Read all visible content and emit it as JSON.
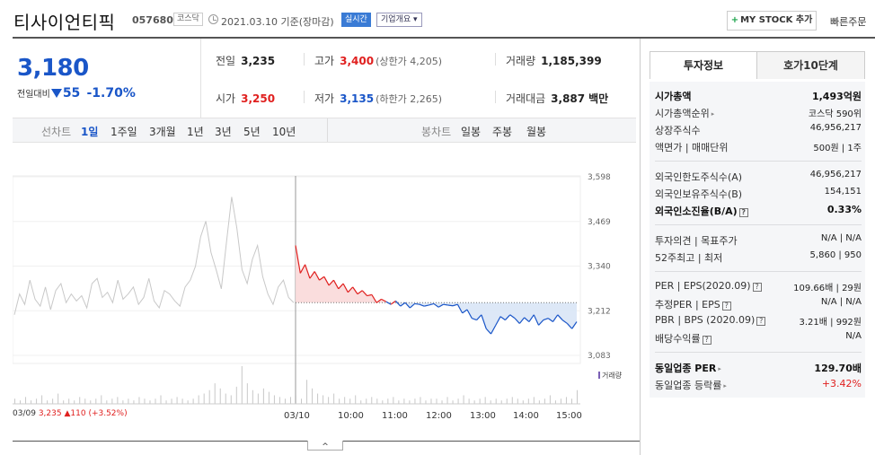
{
  "header": {
    "stock_name": "티사이언티픽",
    "stock_code": "057680",
    "market": "코스닥",
    "date": "2021.03.10 기준(장마감)",
    "realtime": "실시간",
    "company_info": "기업개요 ▾",
    "mystock": "MY STOCK 추가",
    "quick_order": "빠른주문"
  },
  "price": {
    "current": "3,180",
    "change_label": "전일대비",
    "change": "55",
    "change_pct": "-1.70%"
  },
  "summary": {
    "prev_close_label": "전일",
    "prev_close": "3,235",
    "high_label": "고가",
    "high": "3,400",
    "upper_limit": "(상한가 4,205)",
    "volume_label": "거래량",
    "volume": "1,185,399",
    "open_label": "시가",
    "open": "3,250",
    "low_label": "저가",
    "low": "3,135",
    "lower_limit": "(하한가 2,265)",
    "amount_label": "거래대금",
    "amount": "3,887",
    "amount_unit": "백만"
  },
  "chart_tabs": {
    "line_label": "선차트",
    "periods": [
      "1일",
      "1주일",
      "3개월",
      "1년",
      "3년",
      "5년",
      "10년"
    ],
    "candle_label": "봉차트",
    "candles": [
      "일봉",
      "주봉",
      "월봉"
    ]
  },
  "chart_data": {
    "type": "line",
    "y_ticks": [
      "3,598",
      "3,469",
      "3,340",
      "3,212",
      "3,083"
    ],
    "ylim": [
      3083,
      3598
    ],
    "x_ticks": [
      "03/09",
      "03/10",
      "10:00",
      "11:00",
      "12:00",
      "13:00",
      "14:00",
      "15:00"
    ],
    "prev_close": 3235,
    "prev_close_text": {
      "date": "03/09",
      "price": "3,235",
      "arrow": "▲",
      "change": "110",
      "pct": "(+3.52%)"
    },
    "volume_label": "거래량",
    "series": [
      {
        "values": [
          3200,
          3260,
          3230,
          3300,
          3245,
          3225,
          3280,
          3215,
          3270,
          3290,
          3235,
          3260,
          3240,
          3255,
          3220,
          3290,
          3305,
          3250,
          3265,
          3235,
          3300,
          3245,
          3260,
          3280,
          3230,
          3250,
          3305,
          3240,
          3220,
          3270,
          3260,
          3240,
          3225,
          3280,
          3300,
          3340,
          3425,
          3470,
          3380,
          3330,
          3275,
          3410,
          3540,
          3450,
          3330,
          3290,
          3360,
          3400,
          3310,
          3260,
          3230,
          3280,
          3300,
          3250,
          3235
        ]
      },
      {
        "values": [
          3400,
          3320,
          3345,
          3305,
          3325,
          3300,
          3310,
          3285,
          3300,
          3275,
          3290,
          3265,
          3280,
          3260,
          3270,
          3255,
          3258,
          3235,
          3245,
          3238,
          3230,
          3240,
          3225,
          3235,
          3220,
          3232,
          3230,
          3225,
          3228,
          3232,
          3222,
          3230,
          3228,
          3226,
          3230,
          3205,
          3215,
          3190,
          3185,
          3200,
          3160,
          3145,
          3170,
          3195,
          3185,
          3200,
          3190,
          3175,
          3192,
          3180,
          3200,
          3170,
          3185,
          3190,
          3180,
          3200,
          3185,
          3175,
          3160,
          3180
        ]
      }
    ],
    "volume": [
      3,
      2,
      4,
      2,
      3,
      5,
      2,
      3,
      6,
      2,
      3,
      2,
      4,
      3,
      2,
      3,
      5,
      2,
      3,
      4,
      2,
      3,
      2,
      4,
      3,
      2,
      3,
      5,
      2,
      3,
      4,
      3,
      2,
      3,
      5,
      6,
      8,
      12,
      9,
      6,
      5,
      10,
      22,
      12,
      8,
      6,
      9,
      7,
      5,
      4,
      3,
      4,
      5,
      3,
      14,
      9,
      6,
      5,
      4,
      6,
      3,
      4,
      3,
      5,
      2,
      3,
      4,
      3,
      2,
      3,
      4,
      2,
      3,
      2,
      3,
      4,
      2,
      3,
      3,
      2,
      4,
      2,
      3,
      5,
      3,
      2,
      3,
      4,
      2,
      3,
      2,
      3,
      4,
      3,
      2,
      3,
      4,
      2,
      3,
      5,
      2,
      3,
      4,
      3,
      8
    ]
  },
  "right_panel": {
    "tabs": [
      "투자정보",
      "호가10단계"
    ],
    "rows": [
      {
        "l": "시가총액",
        "v": "1,493억원"
      },
      {
        "l": "시가총액순위",
        "v": "코스닥 590위"
      },
      {
        "l": "상장주식수",
        "v": "46,956,217"
      },
      {
        "l": "액면가 | 매매단위",
        "v": "500원 | 1주"
      },
      {
        "l": "외국인한도주식수(A)",
        "v": "46,956,217"
      },
      {
        "l": "외국인보유주식수(B)",
        "v": "154,151"
      },
      {
        "l": "외국인소진율(B/A)",
        "v": "0.33%"
      },
      {
        "l": "투자의견 | 목표주가",
        "v": "N/A | N/A"
      },
      {
        "l": "52주최고 | 최저",
        "v": "5,860 | 950"
      },
      {
        "l": "PER | EPS(2020.09)",
        "v": "109.66배 | 29원"
      },
      {
        "l": "추정PER | EPS",
        "v": "N/A | N/A"
      },
      {
        "l": "PBR | BPS (2020.09)",
        "v": "3.21배 | 992원"
      },
      {
        "l": "배당수익률",
        "v": "N/A"
      },
      {
        "l": "동일업종 PER",
        "v": "129.70배"
      },
      {
        "l": "동일업종 등락률",
        "v": "+3.42%"
      }
    ]
  },
  "collapse_icon": "chevron-up-icon"
}
